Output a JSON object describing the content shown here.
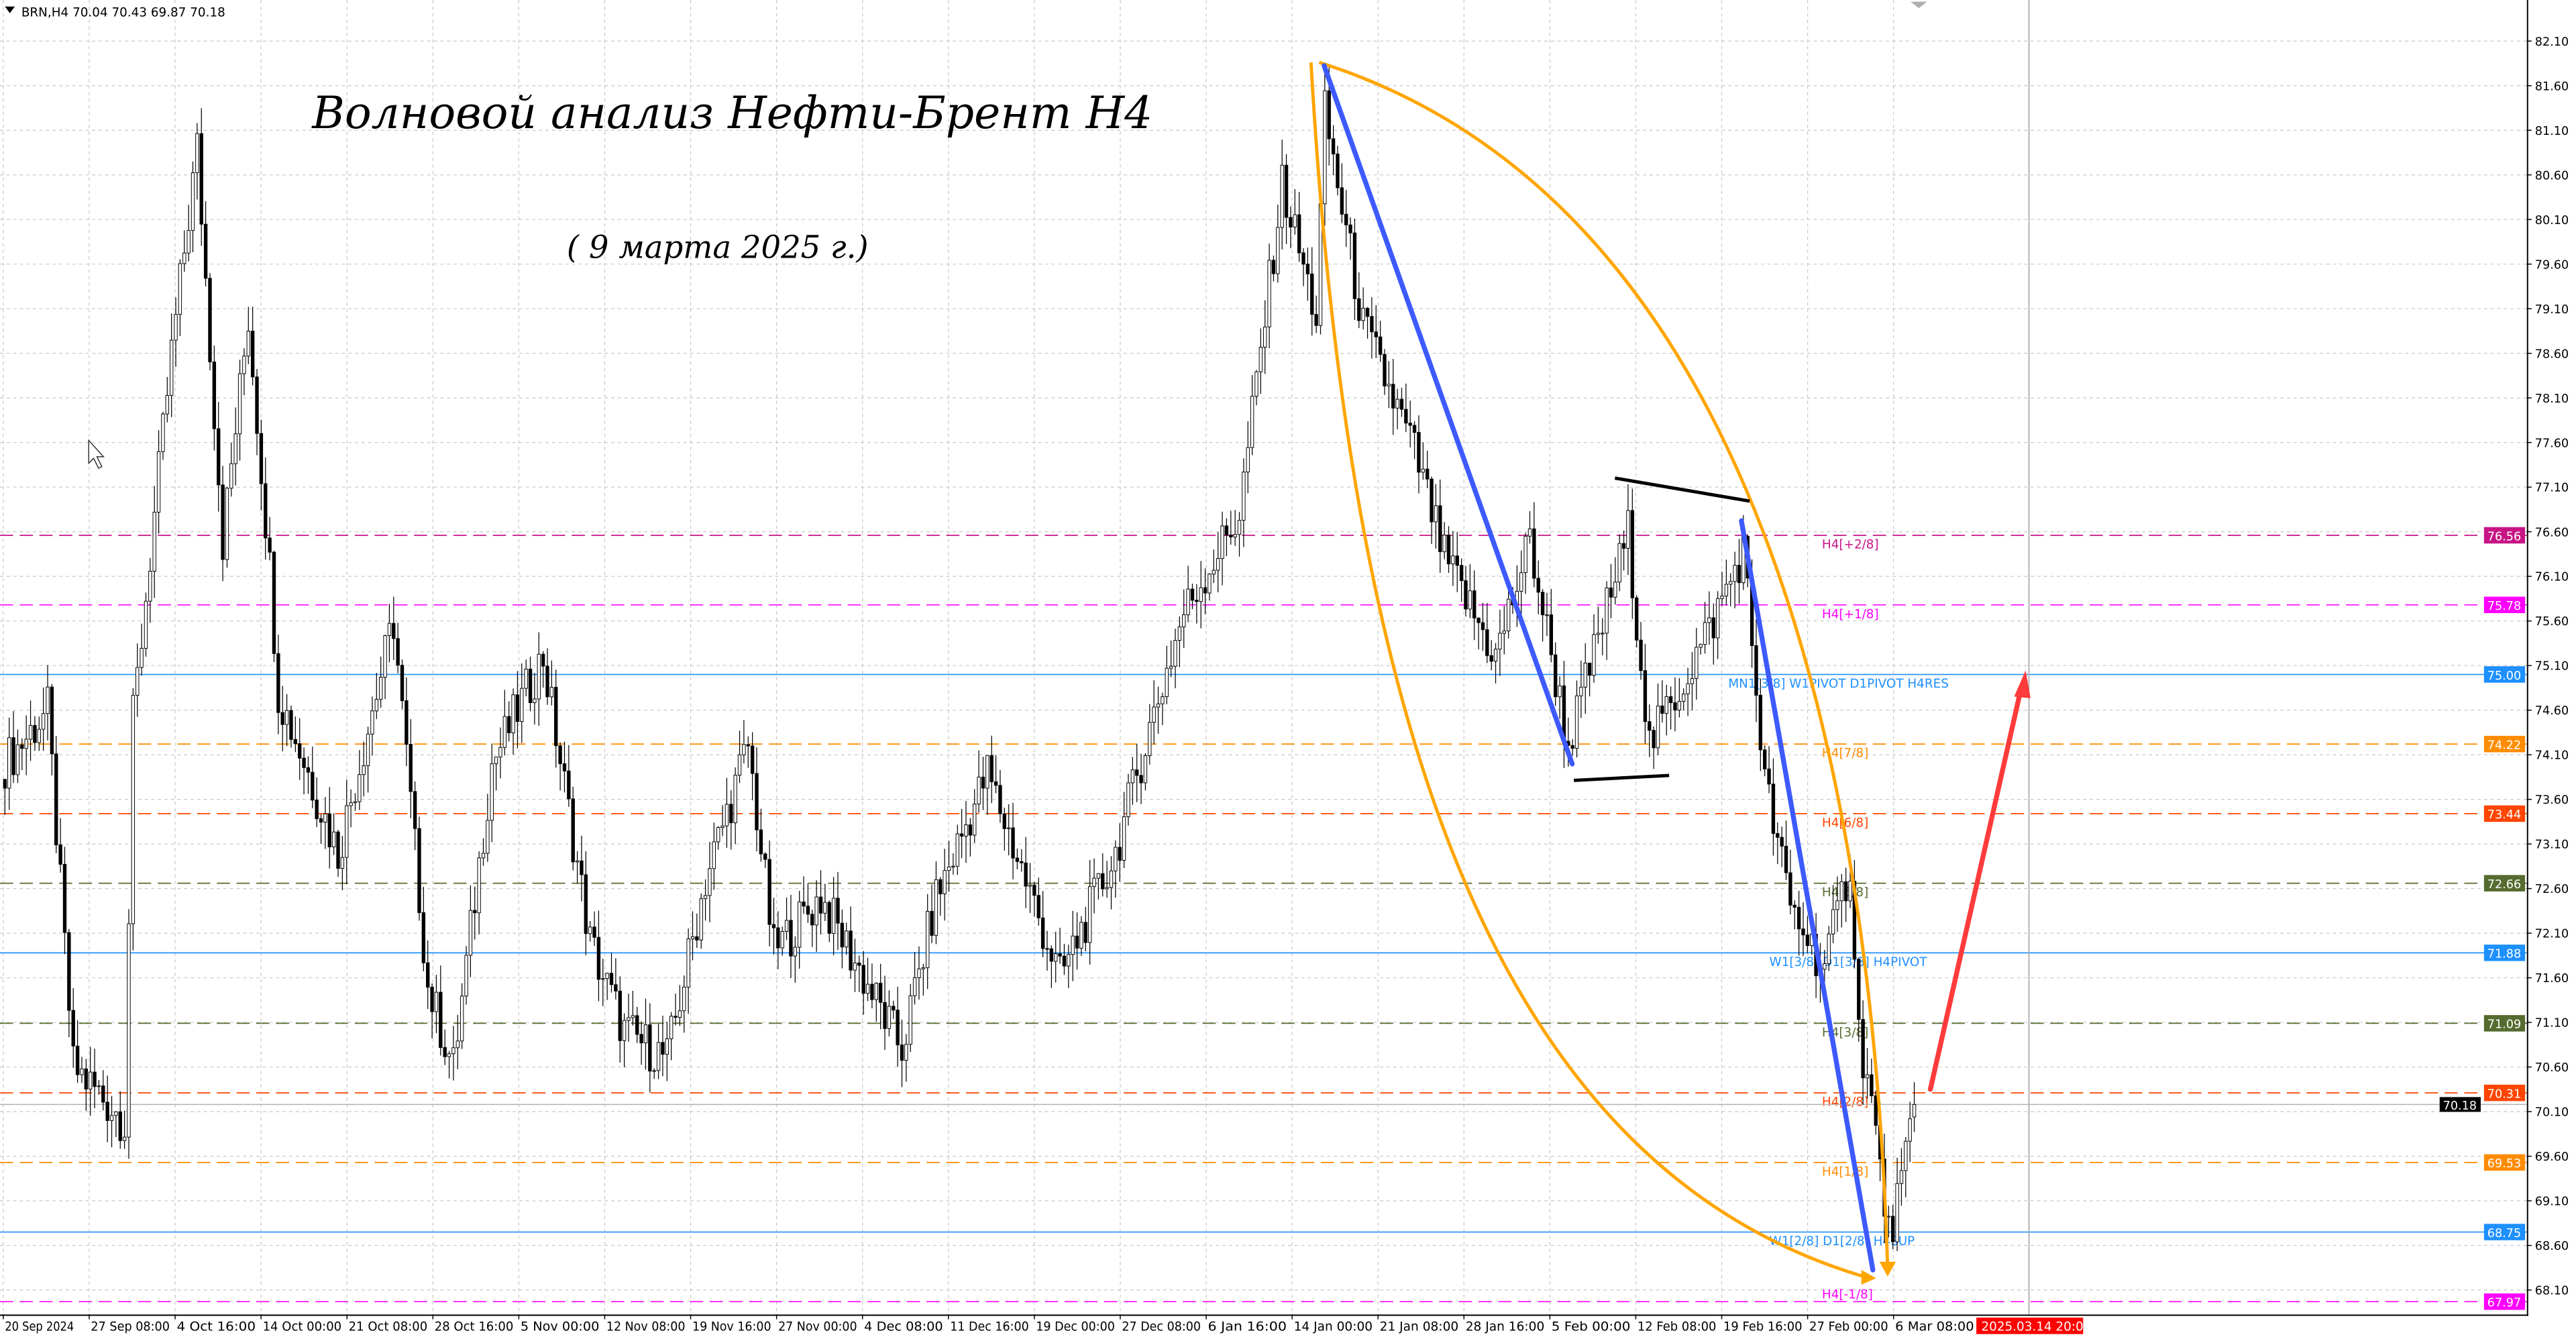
{
  "header": {
    "symbol_info": "BRN,H4  70.04 70.43 69.87 70.18",
    "menu_icon": "triangle-down-icon"
  },
  "annotations": {
    "title": "Волновой анализ Нефти-Брент H4",
    "subtitle": "( 9 марта 2025 г.)"
  },
  "chart_data": {
    "type": "candlestick",
    "symbol": "BRN",
    "timeframe": "H4",
    "last_bar": {
      "open": 70.04,
      "high": 70.43,
      "low": 69.87,
      "close": 70.18
    },
    "ylim": [
      67.9,
      82.3
    ],
    "y_ticks": [
      "82.10",
      "81.60",
      "81.10",
      "80.60",
      "80.10",
      "79.60",
      "79.10",
      "78.60",
      "78.10",
      "77.60",
      "77.10",
      "76.60",
      "76.10",
      "75.60",
      "75.10",
      "74.60",
      "74.10",
      "73.60",
      "73.10",
      "72.60",
      "72.10",
      "71.60",
      "71.10",
      "70.60",
      "70.10",
      "69.60",
      "69.10",
      "68.60",
      "68.10"
    ],
    "x_ticks": [
      "20 Sep 2024",
      "27 Sep 08:00",
      "4 Oct 16:00",
      "14 Oct 00:00",
      "21 Oct 08:00",
      "28 Oct 16:00",
      "5 Nov 00:00",
      "12 Nov 08:00",
      "19 Nov 16:00",
      "27 Nov 00:00",
      "4 Dec 08:00",
      "11 Dec 16:00",
      "19 Dec 00:00",
      "27 Dec 08:00",
      "6 Jan 16:00",
      "14 Jan 00:00",
      "21 Jan 08:00",
      "28 Jan 16:00",
      "5 Feb 00:00",
      "12 Feb 08:00",
      "19 Feb 16:00",
      "27 Feb 00:00",
      "6 Mar 08:00"
    ],
    "cursor_time_label": "2025.03.14 20:00",
    "grid": true,
    "price_path": [
      [
        0,
        74.0
      ],
      [
        10,
        74.6
      ],
      [
        16,
        70.6
      ],
      [
        28,
        70.0
      ],
      [
        30,
        74.5
      ],
      [
        39,
        78.6
      ],
      [
        45,
        80.9
      ],
      [
        51,
        76.5
      ],
      [
        57,
        79.0
      ],
      [
        62,
        76.2
      ],
      [
        64,
        74.8
      ],
      [
        78,
        73.0
      ],
      [
        91,
        75.6
      ],
      [
        99,
        71.5
      ],
      [
        105,
        70.6
      ],
      [
        114,
        74.0
      ],
      [
        126,
        75.2
      ],
      [
        137,
        72.0
      ],
      [
        145,
        71.0
      ],
      [
        155,
        70.7
      ],
      [
        164,
        72.7
      ],
      [
        174,
        74.2
      ],
      [
        180,
        71.9
      ],
      [
        191,
        72.5
      ],
      [
        210,
        70.8
      ],
      [
        218,
        72.5
      ],
      [
        230,
        73.9
      ],
      [
        247,
        71.6
      ],
      [
        260,
        73.0
      ],
      [
        268,
        74.4
      ],
      [
        276,
        75.7
      ],
      [
        289,
        76.8
      ],
      [
        295,
        79.0
      ],
      [
        299,
        80.5
      ],
      [
        307,
        79.0
      ],
      [
        309,
        81.3
      ],
      [
        318,
        78.9
      ],
      [
        330,
        77.5
      ],
      [
        337,
        76.3
      ],
      [
        349,
        75.2
      ],
      [
        357,
        76.5
      ],
      [
        366,
        74.2
      ],
      [
        380,
        76.6
      ],
      [
        385,
        74.2
      ],
      [
        399,
        75.5
      ],
      [
        407,
        76.4
      ],
      [
        412,
        73.8
      ],
      [
        418,
        72.4
      ],
      [
        426,
        71.7
      ],
      [
        432,
        72.9
      ],
      [
        434,
        71.0
      ],
      [
        437,
        70.2
      ],
      [
        441,
        68.7
      ],
      [
        445,
        69.5
      ],
      [
        447,
        70.18
      ]
    ],
    "current_price": {
      "value": "70.18",
      "color": "#000000"
    },
    "levels": [
      {
        "price": 76.56,
        "value": "76.56",
        "label": "H4[+2/8]",
        "color": "#c71585",
        "style": "dashed"
      },
      {
        "price": 75.78,
        "value": "75.78",
        "label": "H4[+1/8]",
        "color": "#ff00ff",
        "style": "dashed"
      },
      {
        "price": 75.0,
        "value": "75.00",
        "label": "MN1[3/8] W1PIVOT D1PIVOT H4RES",
        "color": "#1e90ff",
        "style": "solid"
      },
      {
        "price": 74.22,
        "value": "74.22",
        "label": "H4[7/8]",
        "color": "#ff8c00",
        "style": "dashed"
      },
      {
        "price": 73.44,
        "value": "73.44",
        "label": "H4[6/8]",
        "color": "#ff4500",
        "style": "dashed"
      },
      {
        "price": 72.66,
        "value": "72.66",
        "label": "H4[5/8]",
        "color": "#556b2f",
        "style": "dashed"
      },
      {
        "price": 71.88,
        "value": "71.88",
        "label": "W1[3/8] D1[3/8] H4PIVOT",
        "color": "#1e90ff",
        "style": "solid"
      },
      {
        "price": 71.09,
        "value": "71.09",
        "label": "H4[3/8]",
        "color": "#556b2f",
        "style": "dashed"
      },
      {
        "price": 70.31,
        "value": "70.31",
        "label": "H4[2/8]",
        "color": "#ff4500",
        "style": "dashed"
      },
      {
        "price": 69.53,
        "value": "69.53",
        "label": "H4[1/8]",
        "color": "#ff8c00",
        "style": "dashed"
      },
      {
        "price": 68.75,
        "value": "68.75",
        "label": "W1[2/8] D1[2/8] H4SUP",
        "color": "#1e90ff",
        "style": "solid"
      },
      {
        "price": 67.97,
        "value": "67.97",
        "label": "H4[-1/8]",
        "color": "#ff00ff",
        "style": "dashed"
      }
    ],
    "drawing_colors": {
      "trend_blue": "#3d5afe",
      "channel_black": "#000000",
      "arc_orange": "#ffa500",
      "forecast_red": "#ff3b3b"
    }
  }
}
